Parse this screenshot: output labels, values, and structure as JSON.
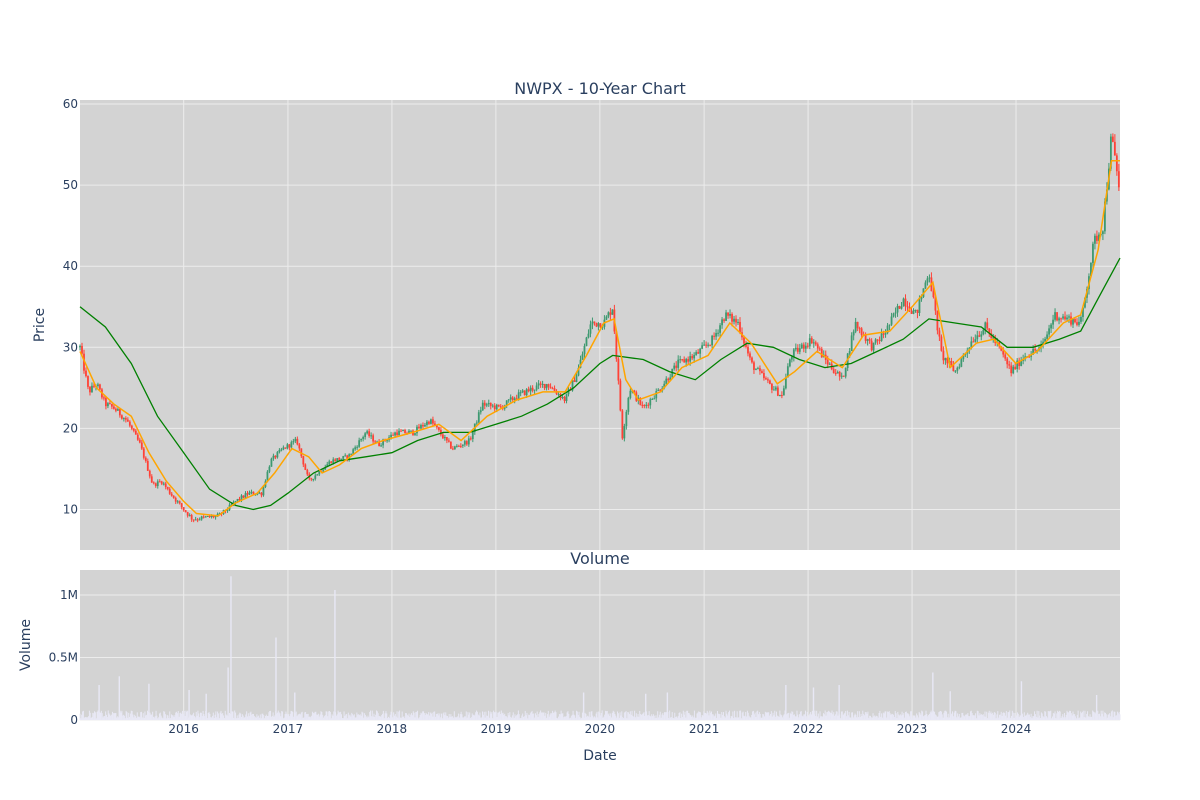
{
  "chart_data": [
    {
      "type": "candlestick",
      "title": "NWPX - 10-Year Chart",
      "ylabel": "Price",
      "ylim": [
        5,
        60.5
      ],
      "yticks": [
        10,
        20,
        30,
        40,
        50,
        60
      ],
      "x_range": [
        "2015-01-02",
        "2024-12-31"
      ],
      "grid": true,
      "colors": {
        "plot_bg": "#d3d3d3",
        "grid": "#ececec",
        "up": "#3d9970",
        "down": "#ff4136",
        "ma_short": "#ffa500",
        "ma_long": "#008000"
      },
      "series": [
        {
          "kind": "price",
          "points": [
            [
              "2015-01-02",
              30.0
            ],
            [
              "2015-02-01",
              24.5
            ],
            [
              "2015-03-01",
              25.5
            ],
            [
              "2015-04-01",
              23.0
            ],
            [
              "2015-05-01",
              22.5
            ],
            [
              "2015-06-15",
              21.0
            ],
            [
              "2015-08-01",
              18.0
            ],
            [
              "2015-09-15",
              13.0
            ],
            [
              "2015-10-15",
              13.5
            ],
            [
              "2015-11-15",
              12.0
            ],
            [
              "2016-01-01",
              10.0
            ],
            [
              "2016-02-01",
              8.8
            ],
            [
              "2016-03-15",
              9.0
            ],
            [
              "2016-05-01",
              9.2
            ],
            [
              "2016-06-01",
              10.0
            ],
            [
              "2016-07-01",
              11.0
            ],
            [
              "2016-08-15",
              12.0
            ],
            [
              "2016-10-01",
              12.0
            ],
            [
              "2016-11-01",
              16.0
            ],
            [
              "2016-12-15",
              17.5
            ],
            [
              "2017-02-01",
              18.5
            ],
            [
              "2017-03-15",
              13.5
            ],
            [
              "2017-04-15",
              14.5
            ],
            [
              "2017-06-01",
              16.0
            ],
            [
              "2017-08-01",
              16.5
            ],
            [
              "2017-10-01",
              19.5
            ],
            [
              "2017-11-15",
              18.0
            ],
            [
              "2018-01-15",
              19.5
            ],
            [
              "2018-03-15",
              19.5
            ],
            [
              "2018-05-15",
              21.0
            ],
            [
              "2018-08-01",
              17.5
            ],
            [
              "2018-10-01",
              18.5
            ],
            [
              "2018-11-15",
              23.0
            ],
            [
              "2019-01-15",
              22.5
            ],
            [
              "2019-03-15",
              24.0
            ],
            [
              "2019-05-15",
              25.0
            ],
            [
              "2019-07-01",
              25.5
            ],
            [
              "2019-09-01",
              23.5
            ],
            [
              "2019-10-15",
              27.0
            ],
            [
              "2019-12-01",
              33.0
            ],
            [
              "2020-01-15",
              33.0
            ],
            [
              "2020-02-15",
              35.0
            ],
            [
              "2020-03-20",
              19.0
            ],
            [
              "2020-04-15",
              25.0
            ],
            [
              "2020-06-01",
              22.5
            ],
            [
              "2020-08-01",
              25.0
            ],
            [
              "2020-10-01",
              28.0
            ],
            [
              "2020-12-01",
              29.0
            ],
            [
              "2021-02-01",
              31.0
            ],
            [
              "2021-03-15",
              34.0
            ],
            [
              "2021-05-01",
              33.0
            ],
            [
              "2021-06-15",
              28.0
            ],
            [
              "2021-08-15",
              25.5
            ],
            [
              "2021-10-01",
              24.0
            ],
            [
              "2021-11-01",
              29.0
            ],
            [
              "2022-01-15",
              31.0
            ],
            [
              "2022-03-01",
              28.5
            ],
            [
              "2022-05-01",
              26.0
            ],
            [
              "2022-06-15",
              33.0
            ],
            [
              "2022-08-15",
              30.0
            ],
            [
              "2022-10-01",
              32.0
            ],
            [
              "2022-12-01",
              36.0
            ],
            [
              "2023-01-15",
              34.0
            ],
            [
              "2023-03-01",
              39.5
            ],
            [
              "2023-04-15",
              29.0
            ],
            [
              "2023-06-01",
              27.0
            ],
            [
              "2023-08-01",
              31.0
            ],
            [
              "2023-09-15",
              32.5
            ],
            [
              "2023-11-01",
              30.0
            ],
            [
              "2023-12-15",
              27.0
            ],
            [
              "2024-02-01",
              29.0
            ],
            [
              "2024-04-01",
              30.0
            ],
            [
              "2024-05-15",
              34.0
            ],
            [
              "2024-07-01",
              33.5
            ],
            [
              "2024-08-15",
              33.0
            ],
            [
              "2024-10-01",
              43.0
            ],
            [
              "2024-11-01",
              45.0
            ],
            [
              "2024-12-01",
              56.0
            ],
            [
              "2024-12-31",
              49.0
            ]
          ]
        },
        {
          "kind": "ma_short",
          "points": [
            [
              "2015-01-02",
              29.5
            ],
            [
              "2015-03-01",
              25.0
            ],
            [
              "2015-05-01",
              23.0
            ],
            [
              "2015-07-01",
              21.5
            ],
            [
              "2015-09-01",
              17.0
            ],
            [
              "2015-11-01",
              13.5
            ],
            [
              "2016-01-01",
              11.0
            ],
            [
              "2016-02-15",
              9.5
            ],
            [
              "2016-05-01",
              9.2
            ],
            [
              "2016-07-01",
              10.8
            ],
            [
              "2016-09-15",
              12.0
            ],
            [
              "2016-11-15",
              14.5
            ],
            [
              "2017-01-15",
              17.5
            ],
            [
              "2017-03-15",
              16.5
            ],
            [
              "2017-05-01",
              14.5
            ],
            [
              "2017-07-01",
              15.5
            ],
            [
              "2017-09-15",
              17.5
            ],
            [
              "2017-12-01",
              18.5
            ],
            [
              "2018-03-15",
              19.5
            ],
            [
              "2018-06-15",
              20.5
            ],
            [
              "2018-09-01",
              18.5
            ],
            [
              "2018-12-01",
              21.5
            ],
            [
              "2019-03-15",
              23.5
            ],
            [
              "2019-06-15",
              24.5
            ],
            [
              "2019-09-01",
              24.5
            ],
            [
              "2019-11-15",
              29.0
            ],
            [
              "2020-01-15",
              33.0
            ],
            [
              "2020-02-20",
              33.5
            ],
            [
              "2020-04-01",
              26.0
            ],
            [
              "2020-05-15",
              23.5
            ],
            [
              "2020-08-01",
              24.5
            ],
            [
              "2020-10-15",
              27.5
            ],
            [
              "2021-01-15",
              29.0
            ],
            [
              "2021-04-01",
              33.0
            ],
            [
              "2021-06-15",
              30.5
            ],
            [
              "2021-09-15",
              25.5
            ],
            [
              "2021-11-15",
              27.0
            ],
            [
              "2022-02-01",
              29.5
            ],
            [
              "2022-05-01",
              27.5
            ],
            [
              "2022-07-15",
              31.5
            ],
            [
              "2022-10-15",
              32.0
            ],
            [
              "2023-01-01",
              35.0
            ],
            [
              "2023-03-15",
              38.0
            ],
            [
              "2023-05-15",
              27.5
            ],
            [
              "2023-08-15",
              30.5
            ],
            [
              "2023-10-15",
              31.0
            ],
            [
              "2024-01-01",
              28.0
            ],
            [
              "2024-03-15",
              29.5
            ],
            [
              "2024-06-15",
              33.0
            ],
            [
              "2024-08-15",
              34.0
            ],
            [
              "2024-10-15",
              42.0
            ],
            [
              "2024-12-01",
              53.0
            ],
            [
              "2024-12-31",
              53.0
            ]
          ]
        },
        {
          "kind": "ma_long",
          "points": [
            [
              "2015-01-02",
              35.0
            ],
            [
              "2015-04-01",
              32.5
            ],
            [
              "2015-07-01",
              28.0
            ],
            [
              "2015-10-01",
              21.5
            ],
            [
              "2016-01-01",
              17.0
            ],
            [
              "2016-04-01",
              12.5
            ],
            [
              "2016-07-01",
              10.5
            ],
            [
              "2016-09-01",
              10.0
            ],
            [
              "2016-11-01",
              10.5
            ],
            [
              "2017-01-01",
              12.0
            ],
            [
              "2017-04-01",
              14.5
            ],
            [
              "2017-07-01",
              16.0
            ],
            [
              "2017-10-01",
              16.5
            ],
            [
              "2018-01-01",
              17.0
            ],
            [
              "2018-04-01",
              18.5
            ],
            [
              "2018-07-01",
              19.5
            ],
            [
              "2018-10-01",
              19.5
            ],
            [
              "2019-01-01",
              20.5
            ],
            [
              "2019-04-01",
              21.5
            ],
            [
              "2019-07-01",
              23.0
            ],
            [
              "2019-10-01",
              25.0
            ],
            [
              "2020-01-01",
              28.0
            ],
            [
              "2020-02-15",
              29.0
            ],
            [
              "2020-06-01",
              28.5
            ],
            [
              "2020-09-01",
              27.0
            ],
            [
              "2020-12-01",
              26.0
            ],
            [
              "2021-03-01",
              28.5
            ],
            [
              "2021-06-01",
              30.5
            ],
            [
              "2021-09-01",
              30.0
            ],
            [
              "2021-12-01",
              28.5
            ],
            [
              "2022-03-01",
              27.5
            ],
            [
              "2022-06-01",
              28.0
            ],
            [
              "2022-09-01",
              29.5
            ],
            [
              "2022-12-01",
              31.0
            ],
            [
              "2023-03-01",
              33.5
            ],
            [
              "2023-06-01",
              33.0
            ],
            [
              "2023-09-01",
              32.5
            ],
            [
              "2023-12-01",
              30.0
            ],
            [
              "2024-03-01",
              30.0
            ],
            [
              "2024-06-01",
              31.0
            ],
            [
              "2024-08-15",
              32.0
            ],
            [
              "2024-10-15",
              36.0
            ],
            [
              "2024-12-31",
              41.0
            ]
          ]
        }
      ]
    },
    {
      "type": "bar",
      "title": "Volume",
      "ylabel": "Volume",
      "ylim": [
        0,
        1200000
      ],
      "yticks": [
        0,
        500000,
        1000000
      ],
      "ytick_labels": [
        "0",
        "0.5M",
        "1M"
      ],
      "colors": {
        "bar": "#e8e8f5",
        "plot_bg": "#d3d3d3",
        "grid": "#ececec"
      },
      "spikes": [
        [
          "2015-03-10",
          280000
        ],
        [
          "2015-05-20",
          350000
        ],
        [
          "2015-09-01",
          290000
        ],
        [
          "2016-01-20",
          240000
        ],
        [
          "2016-03-20",
          210000
        ],
        [
          "2016-06-05",
          420000
        ],
        [
          "2016-06-15",
          1150000
        ],
        [
          "2016-11-20",
          660000
        ],
        [
          "2017-01-25",
          220000
        ],
        [
          "2017-06-15",
          1040000
        ],
        [
          "2019-11-05",
          220000
        ],
        [
          "2020-06-10",
          210000
        ],
        [
          "2020-08-25",
          220000
        ],
        [
          "2021-10-15",
          280000
        ],
        [
          "2022-01-20",
          260000
        ],
        [
          "2022-04-20",
          280000
        ],
        [
          "2023-03-15",
          380000
        ],
        [
          "2023-05-15",
          230000
        ],
        [
          "2024-01-20",
          310000
        ],
        [
          "2024-10-10",
          200000
        ]
      ],
      "baseline_level": 45000
    }
  ],
  "x_axis": {
    "label": "Date",
    "ticks": [
      {
        "date": "2016-01-01",
        "label": "2016"
      },
      {
        "date": "2017-01-01",
        "label": "2017"
      },
      {
        "date": "2018-01-01",
        "label": "2018"
      },
      {
        "date": "2019-01-01",
        "label": "2019"
      },
      {
        "date": "2020-01-01",
        "label": "2020"
      },
      {
        "date": "2021-01-01",
        "label": "2021"
      },
      {
        "date": "2022-01-01",
        "label": "2022"
      },
      {
        "date": "2023-01-01",
        "label": "2023"
      },
      {
        "date": "2024-01-01",
        "label": "2024"
      }
    ]
  }
}
